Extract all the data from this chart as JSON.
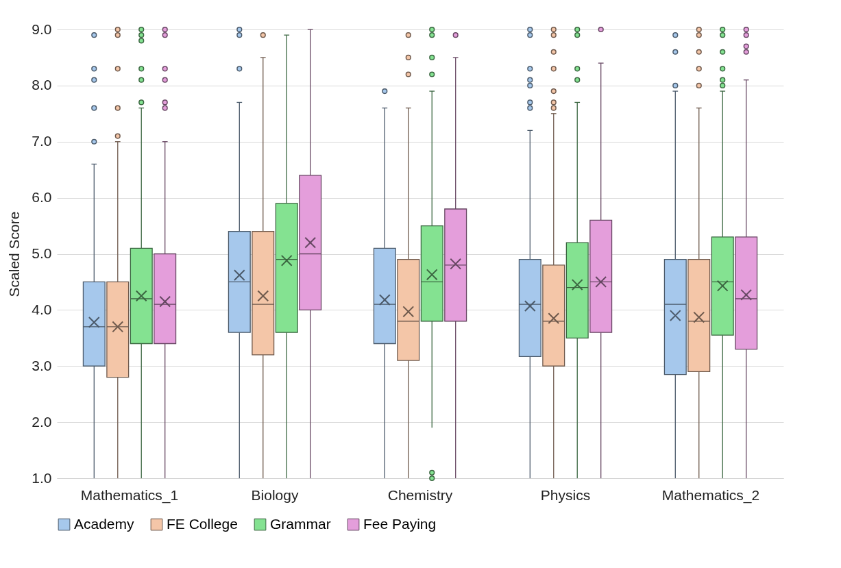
{
  "chart_data": {
    "type": "box",
    "ylabel": "Scaled Score",
    "categories": [
      "Mathematics_1",
      "Biology",
      "Chemistry",
      "Physics",
      "Mathematics_2"
    ],
    "ylim": [
      1,
      9
    ],
    "yticks": [
      {
        "value": 1,
        "label": "1.0"
      },
      {
        "value": 2,
        "label": "2.0"
      },
      {
        "value": 3,
        "label": "3.0"
      },
      {
        "value": 4,
        "label": "4.0"
      },
      {
        "value": 5,
        "label": "5.0"
      },
      {
        "value": 6,
        "label": "6.0"
      },
      {
        "value": 7,
        "label": "7.0"
      },
      {
        "value": 8,
        "label": "8.0"
      },
      {
        "value": 9,
        "label": "9.0"
      }
    ],
    "grid": "y",
    "legend": "bottom",
    "series": [
      {
        "name": "Academy",
        "color": "#a6c8ec",
        "boxes": [
          {
            "low": 1.0,
            "q1": 3.0,
            "median": 3.7,
            "q3": 4.5,
            "high": 6.6,
            "mean": 3.78,
            "outliers": [
              7.0,
              7.6,
              8.1,
              8.3,
              8.9
            ]
          },
          {
            "low": 1.0,
            "q1": 3.6,
            "median": 4.5,
            "q3": 5.4,
            "high": 7.7,
            "mean": 4.62,
            "outliers": [
              8.3,
              8.9,
              9.0
            ]
          },
          {
            "low": 1.0,
            "q1": 3.4,
            "median": 4.1,
            "q3": 5.1,
            "high": 7.6,
            "mean": 4.18,
            "outliers": [
              7.9
            ]
          },
          {
            "low": 1.0,
            "q1": 3.17,
            "median": 4.1,
            "q3": 4.9,
            "high": 7.2,
            "mean": 4.07,
            "outliers": [
              7.6,
              7.7,
              8.0,
              8.1,
              8.3,
              8.9,
              9.0
            ]
          },
          {
            "low": 1.0,
            "q1": 2.85,
            "median": 4.1,
            "q3": 4.9,
            "high": 7.9,
            "mean": 3.9,
            "outliers": [
              8.0,
              8.6,
              8.9
            ]
          }
        ]
      },
      {
        "name": "FE College",
        "color": "#f4c6a8",
        "boxes": [
          {
            "low": 1.0,
            "q1": 2.8,
            "median": 3.7,
            "q3": 4.5,
            "high": 7.0,
            "mean": 3.7,
            "outliers": [
              7.1,
              7.6,
              8.3,
              8.9,
              9.0
            ]
          },
          {
            "low": 1.0,
            "q1": 3.2,
            "median": 4.1,
            "q3": 5.4,
            "high": 8.5,
            "mean": 4.25,
            "outliers": [
              8.9
            ]
          },
          {
            "low": 1.0,
            "q1": 3.1,
            "median": 3.8,
            "q3": 4.9,
            "high": 7.6,
            "mean": 3.97,
            "outliers": [
              8.2,
              8.5,
              8.9
            ]
          },
          {
            "low": 1.0,
            "q1": 3.0,
            "median": 3.8,
            "q3": 4.8,
            "high": 7.5,
            "mean": 3.85,
            "outliers": [
              7.6,
              7.7,
              7.9,
              8.3,
              8.6,
              8.9,
              9.0
            ]
          },
          {
            "low": 1.0,
            "q1": 2.9,
            "median": 3.8,
            "q3": 4.9,
            "high": 7.6,
            "mean": 3.87,
            "outliers": [
              8.0,
              8.3,
              8.6,
              8.9,
              9.0
            ]
          }
        ]
      },
      {
        "name": "Grammar",
        "color": "#84e291",
        "boxes": [
          {
            "low": 1.0,
            "q1": 3.4,
            "median": 4.2,
            "q3": 5.1,
            "high": 7.6,
            "mean": 4.25,
            "outliers": [
              7.7,
              8.1,
              8.3,
              8.8,
              8.9,
              9.0
            ]
          },
          {
            "low": 1.0,
            "q1": 3.6,
            "median": 4.9,
            "q3": 5.9,
            "high": 8.9,
            "mean": 4.88
          },
          {
            "low": 1.9,
            "q1": 3.8,
            "median": 4.5,
            "q3": 5.5,
            "high": 7.9,
            "mean": 4.63,
            "outliers": [
              1.0,
              1.1,
              8.2,
              8.5,
              8.9,
              9.0
            ]
          },
          {
            "low": 1.0,
            "q1": 3.5,
            "median": 4.4,
            "q3": 5.2,
            "high": 7.7,
            "mean": 4.45,
            "outliers": [
              8.1,
              8.3,
              8.9,
              9.0
            ]
          },
          {
            "low": 1.0,
            "q1": 3.55,
            "median": 4.5,
            "q3": 5.3,
            "high": 7.9,
            "mean": 4.43,
            "outliers": [
              8.0,
              8.1,
              8.3,
              8.6,
              8.9,
              9.0
            ]
          }
        ]
      },
      {
        "name": "Fee Paying",
        "color": "#e49edb",
        "boxes": [
          {
            "low": 1.0,
            "q1": 3.4,
            "median": 4.1,
            "q3": 5.0,
            "high": 7.0,
            "mean": 4.15,
            "outliers": [
              7.6,
              7.7,
              8.1,
              8.3,
              8.9,
              9.0
            ]
          },
          {
            "low": 1.0,
            "q1": 4.0,
            "median": 5.0,
            "q3": 6.4,
            "high": 9.0,
            "mean": 5.2
          },
          {
            "low": 1.0,
            "q1": 3.8,
            "median": 4.8,
            "q3": 5.8,
            "high": 8.5,
            "mean": 4.82,
            "outliers": [
              8.9
            ]
          },
          {
            "low": 1.0,
            "q1": 3.6,
            "median": 4.5,
            "q3": 5.6,
            "high": 8.4,
            "mean": 4.5,
            "outliers": [
              9.0
            ]
          },
          {
            "low": 1.0,
            "q1": 3.3,
            "median": 4.2,
            "q3": 5.3,
            "high": 8.1,
            "mean": 4.27,
            "outliers": [
              8.6,
              8.7,
              8.9,
              9.0
            ]
          }
        ]
      }
    ]
  }
}
